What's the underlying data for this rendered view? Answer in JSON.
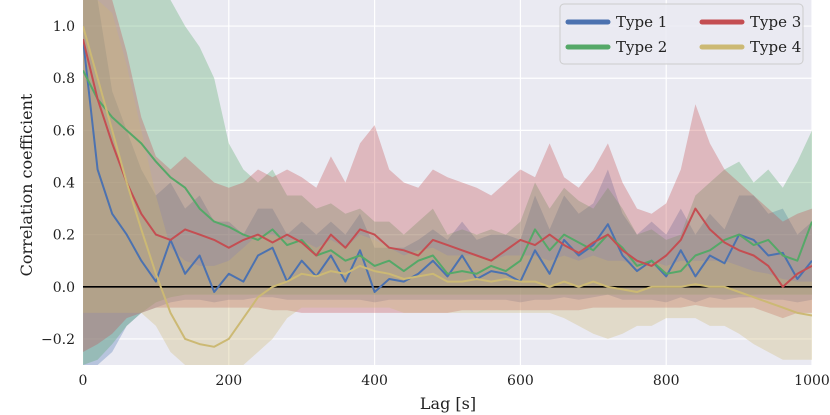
{
  "chart_data": {
    "type": "line",
    "xlabel": "Lag [s]",
    "ylabel": "Correlation coefficient",
    "xlim": [
      0,
      1000
    ],
    "ylim": [
      -0.3,
      1.1
    ],
    "xticks": [
      0,
      200,
      400,
      600,
      800,
      1000
    ],
    "xtick_labels": [
      "0",
      "200",
      "400",
      "600",
      "800",
      "1000"
    ],
    "yticks": [
      -0.2,
      0.0,
      0.2,
      0.4,
      0.6,
      0.8,
      1.0
    ],
    "ytick_labels": [
      "−0.2",
      "0.0",
      "0.2",
      "0.4",
      "0.6",
      "0.8",
      "1.0"
    ],
    "grid": true,
    "background": "#eaeaf2",
    "zero_line": 0,
    "legend": {
      "placement": "top-right",
      "columns": 2
    },
    "x": [
      0,
      20,
      40,
      60,
      80,
      100,
      120,
      140,
      160,
      180,
      200,
      220,
      240,
      260,
      280,
      300,
      320,
      340,
      360,
      380,
      400,
      420,
      440,
      460,
      480,
      500,
      520,
      540,
      560,
      580,
      600,
      620,
      640,
      660,
      680,
      700,
      720,
      740,
      760,
      780,
      800,
      820,
      840,
      860,
      880,
      900,
      920,
      940,
      960,
      980,
      1000
    ],
    "series": [
      {
        "name": "Type 1",
        "color": "#4c72b0",
        "values": [
          0.95,
          0.45,
          0.28,
          0.2,
          0.1,
          0.02,
          0.18,
          0.05,
          0.12,
          -0.02,
          0.05,
          0.02,
          0.12,
          0.15,
          0.02,
          0.1,
          0.04,
          0.12,
          0.02,
          0.14,
          -0.02,
          0.03,
          0.02,
          0.05,
          0.1,
          0.04,
          0.12,
          0.03,
          0.06,
          0.05,
          0.02,
          0.14,
          0.05,
          0.18,
          0.12,
          0.16,
          0.24,
          0.12,
          0.06,
          0.1,
          0.04,
          0.14,
          0.04,
          0.12,
          0.09,
          0.2,
          0.18,
          0.12,
          0.13,
          0.03,
          0.1
        ],
        "band_lower": [
          -0.3,
          -0.3,
          -0.25,
          -0.15,
          -0.1,
          -0.08,
          -0.06,
          -0.05,
          -0.05,
          -0.06,
          -0.05,
          -0.05,
          -0.04,
          -0.04,
          -0.05,
          -0.05,
          -0.05,
          -0.05,
          -0.05,
          -0.05,
          -0.06,
          -0.05,
          -0.05,
          -0.05,
          -0.05,
          -0.05,
          -0.05,
          -0.05,
          -0.05,
          -0.05,
          -0.06,
          -0.05,
          -0.05,
          -0.04,
          -0.05,
          -0.04,
          -0.03,
          -0.05,
          -0.05,
          -0.05,
          -0.06,
          -0.04,
          -0.06,
          -0.04,
          -0.05,
          -0.04,
          -0.04,
          -0.05,
          -0.05,
          -0.06,
          -0.05
        ],
        "band_upper": [
          1.1,
          1.1,
          0.75,
          0.6,
          0.45,
          0.35,
          0.4,
          0.3,
          0.35,
          0.25,
          0.25,
          0.2,
          0.3,
          0.3,
          0.2,
          0.25,
          0.2,
          0.25,
          0.2,
          0.28,
          0.15,
          0.15,
          0.15,
          0.18,
          0.22,
          0.18,
          0.25,
          0.18,
          0.2,
          0.2,
          0.18,
          0.35,
          0.22,
          0.35,
          0.28,
          0.32,
          0.45,
          0.28,
          0.2,
          0.25,
          0.2,
          0.3,
          0.2,
          0.28,
          0.22,
          0.35,
          0.35,
          0.28,
          0.3,
          0.2,
          0.25
        ]
      },
      {
        "name": "Type 2",
        "color": "#55a868",
        "values": [
          0.83,
          0.72,
          0.65,
          0.6,
          0.55,
          0.48,
          0.42,
          0.38,
          0.3,
          0.25,
          0.23,
          0.2,
          0.18,
          0.22,
          0.16,
          0.18,
          0.12,
          0.14,
          0.1,
          0.12,
          0.08,
          0.1,
          0.06,
          0.1,
          0.12,
          0.05,
          0.06,
          0.05,
          0.08,
          0.06,
          0.1,
          0.22,
          0.14,
          0.2,
          0.17,
          0.14,
          0.2,
          0.15,
          0.08,
          0.1,
          0.05,
          0.06,
          0.12,
          0.14,
          0.18,
          0.2,
          0.16,
          0.18,
          0.12,
          0.1,
          0.25
        ],
        "band_lower": [
          -0.3,
          -0.28,
          -0.22,
          -0.15,
          -0.1,
          -0.06,
          -0.04,
          -0.03,
          -0.03,
          -0.03,
          -0.03,
          -0.03,
          -0.03,
          -0.03,
          -0.03,
          -0.03,
          -0.03,
          -0.03,
          -0.03,
          -0.03,
          -0.03,
          -0.03,
          -0.03,
          -0.03,
          -0.03,
          -0.03,
          -0.03,
          -0.03,
          -0.03,
          -0.03,
          -0.03,
          -0.03,
          -0.03,
          -0.03,
          -0.03,
          -0.03,
          -0.03,
          -0.03,
          -0.03,
          -0.03,
          -0.03,
          -0.03,
          -0.03,
          -0.03,
          -0.03,
          -0.03,
          -0.03,
          -0.03,
          -0.03,
          -0.03,
          -0.03
        ],
        "band_upper": [
          1.1,
          1.1,
          1.1,
          1.1,
          1.1,
          1.1,
          1.1,
          1.0,
          0.92,
          0.8,
          0.55,
          0.45,
          0.4,
          0.45,
          0.35,
          0.35,
          0.3,
          0.32,
          0.28,
          0.3,
          0.25,
          0.25,
          0.2,
          0.25,
          0.3,
          0.2,
          0.22,
          0.2,
          0.22,
          0.2,
          0.25,
          0.4,
          0.3,
          0.38,
          0.33,
          0.3,
          0.38,
          0.3,
          0.2,
          0.22,
          0.18,
          0.2,
          0.35,
          0.4,
          0.45,
          0.48,
          0.4,
          0.45,
          0.38,
          0.48,
          0.6
        ]
      },
      {
        "name": "Type 3",
        "color": "#c44e52",
        "values": [
          0.95,
          0.72,
          0.55,
          0.4,
          0.28,
          0.2,
          0.18,
          0.22,
          0.2,
          0.18,
          0.15,
          0.18,
          0.2,
          0.17,
          0.2,
          0.17,
          0.12,
          0.2,
          0.15,
          0.22,
          0.2,
          0.15,
          0.14,
          0.12,
          0.18,
          0.16,
          0.14,
          0.12,
          0.1,
          0.14,
          0.18,
          0.16,
          0.2,
          0.16,
          0.13,
          0.17,
          0.2,
          0.14,
          0.1,
          0.08,
          0.12,
          0.18,
          0.3,
          0.22,
          0.17,
          0.14,
          0.12,
          0.08,
          0.0,
          0.05,
          0.08
        ],
        "band_lower": [
          -0.25,
          -0.22,
          -0.18,
          -0.12,
          -0.1,
          -0.08,
          -0.08,
          -0.08,
          -0.08,
          -0.08,
          -0.08,
          -0.08,
          -0.08,
          -0.09,
          -0.09,
          -0.1,
          -0.1,
          -0.1,
          -0.1,
          -0.1,
          -0.1,
          -0.1,
          -0.1,
          -0.1,
          -0.1,
          -0.1,
          -0.09,
          -0.09,
          -0.09,
          -0.09,
          -0.09,
          -0.09,
          -0.09,
          -0.09,
          -0.09,
          -0.08,
          -0.08,
          -0.08,
          -0.08,
          -0.08,
          -0.08,
          -0.08,
          -0.07,
          -0.08,
          -0.08,
          -0.08,
          -0.08,
          -0.1,
          -0.12,
          -0.1,
          -0.1
        ],
        "band_upper": [
          1.1,
          1.1,
          1.1,
          0.9,
          0.65,
          0.5,
          0.45,
          0.5,
          0.45,
          0.4,
          0.38,
          0.4,
          0.45,
          0.42,
          0.45,
          0.42,
          0.38,
          0.5,
          0.4,
          0.55,
          0.62,
          0.45,
          0.4,
          0.38,
          0.45,
          0.42,
          0.4,
          0.38,
          0.35,
          0.4,
          0.45,
          0.42,
          0.55,
          0.42,
          0.38,
          0.45,
          0.55,
          0.4,
          0.3,
          0.28,
          0.32,
          0.45,
          0.7,
          0.55,
          0.45,
          0.4,
          0.35,
          0.3,
          0.25,
          0.28,
          0.3
        ]
      },
      {
        "name": "Type 4",
        "color": "#ccb974",
        "values": [
          1.0,
          0.8,
          0.6,
          0.4,
          0.22,
          0.05,
          -0.1,
          -0.2,
          -0.22,
          -0.23,
          -0.2,
          -0.12,
          -0.04,
          0.0,
          0.02,
          0.05,
          0.04,
          0.06,
          0.05,
          0.08,
          0.06,
          0.05,
          0.03,
          0.04,
          0.05,
          0.02,
          0.02,
          0.03,
          0.02,
          0.03,
          0.02,
          0.02,
          0.0,
          0.02,
          0.0,
          0.02,
          0.0,
          -0.01,
          -0.02,
          0.0,
          0.0,
          0.0,
          0.01,
          0.0,
          0.0,
          -0.02,
          -0.04,
          -0.06,
          -0.08,
          -0.1,
          -0.11
        ],
        "band_lower": [
          -0.1,
          -0.1,
          -0.1,
          -0.1,
          -0.1,
          -0.15,
          -0.25,
          -0.3,
          -0.3,
          -0.3,
          -0.3,
          -0.3,
          -0.25,
          -0.2,
          -0.12,
          -0.08,
          -0.08,
          -0.08,
          -0.08,
          -0.08,
          -0.08,
          -0.08,
          -0.1,
          -0.1,
          -0.1,
          -0.1,
          -0.1,
          -0.1,
          -0.1,
          -0.1,
          -0.1,
          -0.1,
          -0.1,
          -0.12,
          -0.15,
          -0.18,
          -0.2,
          -0.18,
          -0.15,
          -0.15,
          -0.12,
          -0.12,
          -0.12,
          -0.15,
          -0.15,
          -0.18,
          -0.22,
          -0.25,
          -0.28,
          -0.28,
          -0.28
        ],
        "band_upper": [
          1.1,
          1.1,
          1.05,
          0.85,
          0.6,
          0.35,
          0.15,
          0.1,
          0.08,
          0.08,
          0.1,
          0.15,
          0.2,
          0.2,
          0.18,
          0.18,
          0.15,
          0.18,
          0.15,
          0.2,
          0.18,
          0.15,
          0.12,
          0.14,
          0.15,
          0.12,
          0.12,
          0.12,
          0.1,
          0.12,
          0.12,
          0.12,
          0.1,
          0.12,
          0.1,
          0.12,
          0.1,
          0.1,
          0.08,
          0.1,
          0.08,
          0.1,
          0.1,
          0.1,
          0.1,
          0.08,
          0.06,
          0.05,
          0.03,
          0.02,
          0.02
        ]
      }
    ]
  }
}
